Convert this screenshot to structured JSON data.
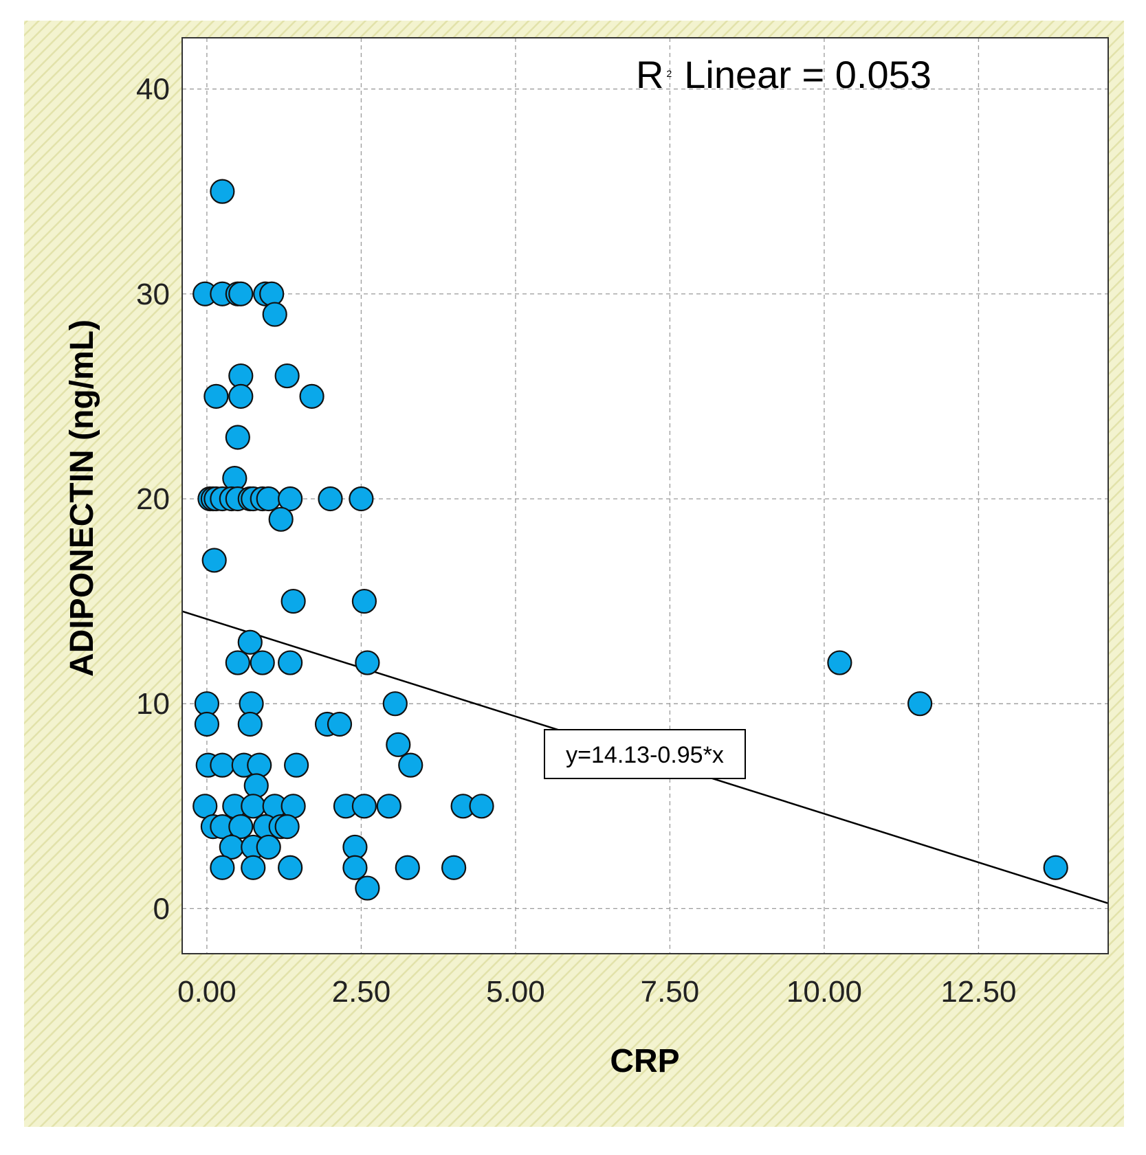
{
  "chart_data": {
    "type": "scatter",
    "title": "",
    "xlabel": "CRP",
    "ylabel": "ADIPONECTIN (ng/mL)",
    "xlim": [
      -0.4,
      14.6
    ],
    "ylim": [
      -2.2,
      42.5
    ],
    "xticks": [
      0,
      2.5,
      5,
      7.5,
      10,
      12.5
    ],
    "xtick_labels": [
      "0.00",
      "2.50",
      "5.00",
      "7.50",
      "10.00",
      "12.50"
    ],
    "yticks": [
      0,
      10,
      20,
      30,
      40
    ],
    "ytick_labels": [
      "0",
      "10",
      "20",
      "30",
      "40"
    ],
    "grid": true,
    "marker_color": "#0aa8ea",
    "marker_edge_color": "#111111",
    "line_color": "#000000",
    "background_color": "#efefc2",
    "annotation_r2": {
      "prefix": "R",
      "superscript": "2",
      "suffix": "Linear = 0.053"
    },
    "regression": {
      "intercept": 14.13,
      "slope": -0.95,
      "label": "y=14.13-0.95*x"
    },
    "points": [
      {
        "x": 0.25,
        "y": 35
      },
      {
        "x": -0.03,
        "y": 30
      },
      {
        "x": 0.25,
        "y": 30
      },
      {
        "x": 0.5,
        "y": 30
      },
      {
        "x": 0.55,
        "y": 30
      },
      {
        "x": 0.95,
        "y": 30
      },
      {
        "x": 1.05,
        "y": 30
      },
      {
        "x": 1.1,
        "y": 29
      },
      {
        "x": 0.55,
        "y": 26
      },
      {
        "x": 1.3,
        "y": 26
      },
      {
        "x": 0.15,
        "y": 25
      },
      {
        "x": 0.55,
        "y": 25
      },
      {
        "x": 1.7,
        "y": 25
      },
      {
        "x": 0.5,
        "y": 23
      },
      {
        "x": 0.45,
        "y": 21
      },
      {
        "x": 0.05,
        "y": 20
      },
      {
        "x": 0.1,
        "y": 20
      },
      {
        "x": 0.15,
        "y": 20
      },
      {
        "x": 0.25,
        "y": 20
      },
      {
        "x": 0.4,
        "y": 20
      },
      {
        "x": 0.5,
        "y": 20
      },
      {
        "x": 0.7,
        "y": 20
      },
      {
        "x": 0.75,
        "y": 20
      },
      {
        "x": 0.9,
        "y": 20
      },
      {
        "x": 1.0,
        "y": 20
      },
      {
        "x": 1.35,
        "y": 20
      },
      {
        "x": 2.0,
        "y": 20
      },
      {
        "x": 2.5,
        "y": 20
      },
      {
        "x": 1.2,
        "y": 19
      },
      {
        "x": 0.12,
        "y": 17
      },
      {
        "x": 1.4,
        "y": 15
      },
      {
        "x": 2.55,
        "y": 15
      },
      {
        "x": 0.7,
        "y": 13
      },
      {
        "x": 0.5,
        "y": 12
      },
      {
        "x": 0.9,
        "y": 12
      },
      {
        "x": 1.35,
        "y": 12
      },
      {
        "x": 2.6,
        "y": 12
      },
      {
        "x": 10.25,
        "y": 12
      },
      {
        "x": 0.0,
        "y": 10
      },
      {
        "x": 0.72,
        "y": 10
      },
      {
        "x": 3.05,
        "y": 10
      },
      {
        "x": 11.55,
        "y": 10
      },
      {
        "x": 0.0,
        "y": 9
      },
      {
        "x": 0.7,
        "y": 9
      },
      {
        "x": 1.95,
        "y": 9
      },
      {
        "x": 2.15,
        "y": 9
      },
      {
        "x": 3.1,
        "y": 8
      },
      {
        "x": 0.02,
        "y": 7
      },
      {
        "x": 0.25,
        "y": 7
      },
      {
        "x": 0.6,
        "y": 7
      },
      {
        "x": 0.85,
        "y": 7
      },
      {
        "x": 1.45,
        "y": 7
      },
      {
        "x": 3.3,
        "y": 7
      },
      {
        "x": 0.8,
        "y": 6
      },
      {
        "x": -0.03,
        "y": 5
      },
      {
        "x": 0.45,
        "y": 5
      },
      {
        "x": 0.75,
        "y": 5
      },
      {
        "x": 1.1,
        "y": 5
      },
      {
        "x": 1.4,
        "y": 5
      },
      {
        "x": 2.25,
        "y": 5
      },
      {
        "x": 2.55,
        "y": 5
      },
      {
        "x": 2.95,
        "y": 5
      },
      {
        "x": 4.15,
        "y": 5
      },
      {
        "x": 4.45,
        "y": 5
      },
      {
        "x": 0.1,
        "y": 4
      },
      {
        "x": 0.25,
        "y": 4
      },
      {
        "x": 0.55,
        "y": 4
      },
      {
        "x": 0.95,
        "y": 4
      },
      {
        "x": 1.2,
        "y": 4
      },
      {
        "x": 1.3,
        "y": 4
      },
      {
        "x": 0.4,
        "y": 3
      },
      {
        "x": 0.75,
        "y": 3
      },
      {
        "x": 1.0,
        "y": 3
      },
      {
        "x": 2.4,
        "y": 3
      },
      {
        "x": 0.25,
        "y": 2
      },
      {
        "x": 0.75,
        "y": 2
      },
      {
        "x": 1.35,
        "y": 2
      },
      {
        "x": 2.4,
        "y": 2
      },
      {
        "x": 3.25,
        "y": 2
      },
      {
        "x": 4.0,
        "y": 2
      },
      {
        "x": 13.75,
        "y": 2
      },
      {
        "x": 2.6,
        "y": 1
      }
    ]
  }
}
